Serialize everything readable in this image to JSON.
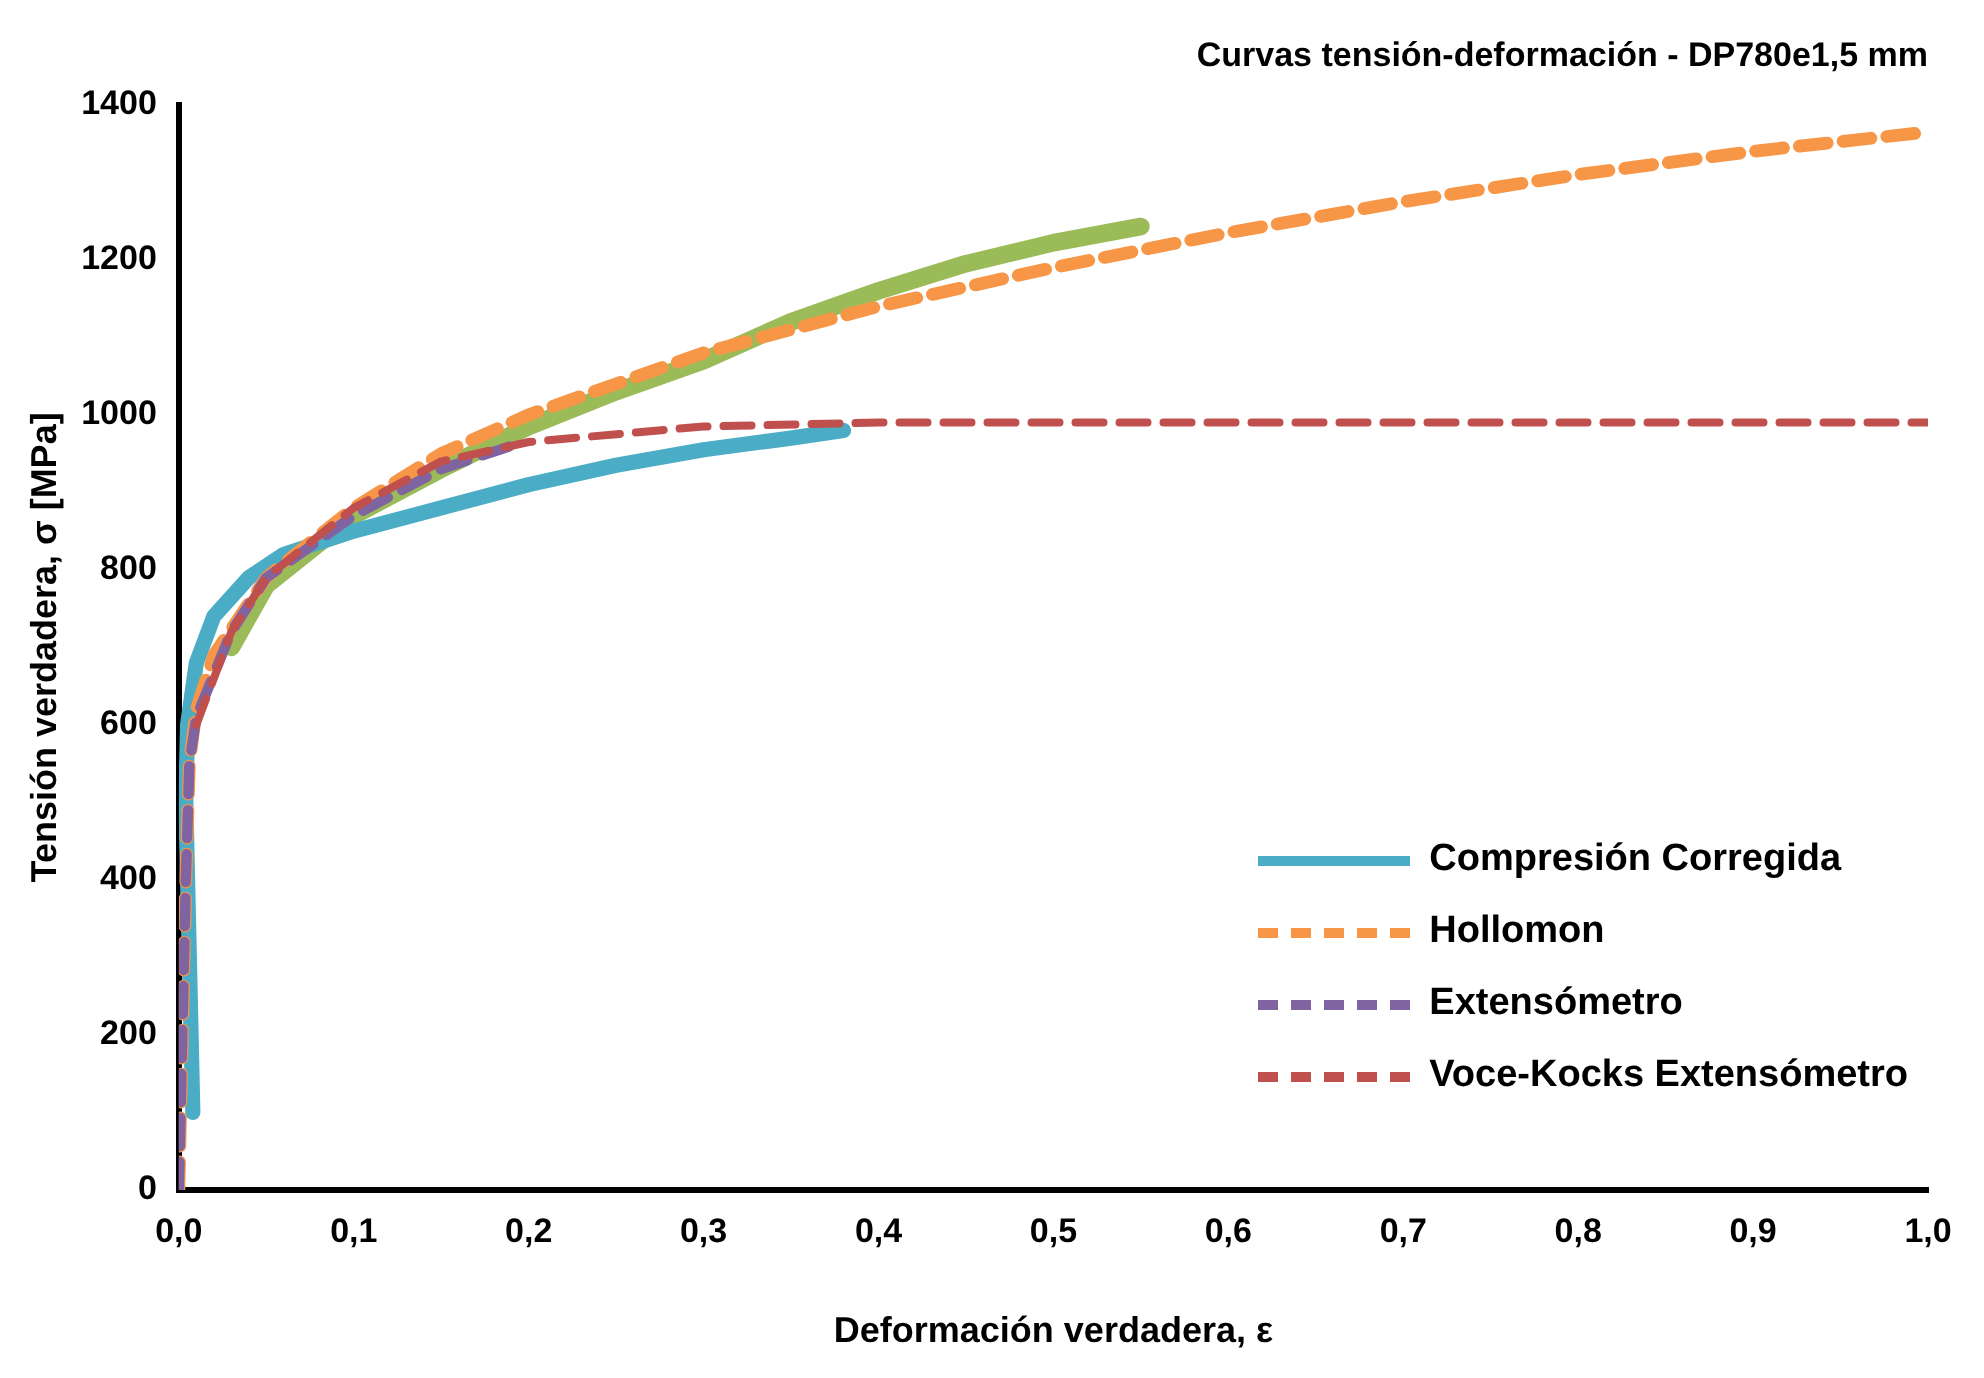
{
  "chart_data": {
    "type": "line",
    "title": "Curvas tensión-deformación - DP780e1,5 mm",
    "xlabel": "Deformación verdadera, ε",
    "ylabel": "Tensión verdadera, σ [MPa]",
    "xlim": [
      0,
      1
    ],
    "ylim": [
      0,
      1400
    ],
    "xticks": [
      {
        "value": 0,
        "label": "0,0"
      },
      {
        "value": 0.1,
        "label": "0,1"
      },
      {
        "value": 0.2,
        "label": "0,2"
      },
      {
        "value": 0.3,
        "label": "0,3"
      },
      {
        "value": 0.4,
        "label": "0,4"
      },
      {
        "value": 0.5,
        "label": "0,5"
      },
      {
        "value": 0.6,
        "label": "0,6"
      },
      {
        "value": 0.7,
        "label": "0,7"
      },
      {
        "value": 0.8,
        "label": "0,8"
      },
      {
        "value": 0.9,
        "label": "0,9"
      },
      {
        "value": 1,
        "label": "1,0"
      }
    ],
    "yticks": [
      0,
      200,
      400,
      600,
      800,
      1000,
      1200,
      1400
    ],
    "grid": false,
    "legend": "bottom right",
    "marker": "none",
    "series": [
      {
        "color": "#9bbb59",
        "line_style": "solid",
        "x": [
          0.03,
          0.05,
          0.1,
          0.15,
          0.2,
          0.25,
          0.3,
          0.35,
          0.4,
          0.45,
          0.5,
          0.55
        ],
        "values": [
          700,
          780,
          870,
          930,
          985,
          1030,
          1070,
          1120,
          1160,
          1195,
          1222,
          1243
        ]
      },
      {
        "name": "Compresión Corregida",
        "color": "#4bacc6",
        "line_style": "solid",
        "x": [
          0.008,
          0.006,
          0.004,
          0.005,
          0.01,
          0.02,
          0.04,
          0.06,
          0.1,
          0.15,
          0.2,
          0.25,
          0.3,
          0.35,
          0.38
        ],
        "values": [
          100,
          300,
          500,
          600,
          680,
          740,
          790,
          820,
          850,
          880,
          910,
          935,
          955,
          970,
          980
        ]
      },
      {
        "name": "Hollomon",
        "color": "#f79646",
        "line_style": "dashed",
        "x": [
          0,
          0.002,
          0.004,
          0.006,
          0.01,
          0.02,
          0.05,
          0.1,
          0.15,
          0.2,
          0.3,
          0.4,
          0.5,
          0.6,
          0.7,
          0.8,
          0.9,
          1.0
        ],
        "values": [
          0,
          200,
          400,
          550,
          620,
          690,
          790,
          880,
          950,
          1000,
          1080,
          1140,
          1190,
          1235,
          1275,
          1310,
          1340,
          1365
        ]
      },
      {
        "name": "Extensómetro",
        "color": "#8064a2",
        "line_style": "dashed",
        "x": [
          0,
          0.002,
          0.004,
          0.006,
          0.01,
          0.03,
          0.05,
          0.1,
          0.15,
          0.19
        ],
        "values": [
          0,
          200,
          400,
          550,
          610,
          720,
          790,
          870,
          930,
          960
        ]
      },
      {
        "name": "Voce-Kocks Extensómetro",
        "color": "#c0504d",
        "line_style": "dashed",
        "x": [
          0.01,
          0.03,
          0.05,
          0.1,
          0.15,
          0.2,
          0.3,
          0.4,
          0.6,
          1.0
        ],
        "values": [
          600,
          720,
          790,
          880,
          940,
          965,
          985,
          990,
          990,
          990
        ]
      }
    ]
  }
}
